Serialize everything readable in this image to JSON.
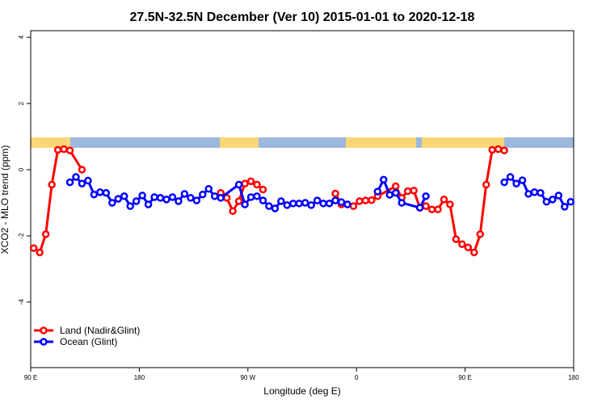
{
  "chart_data": {
    "type": "line",
    "title": "27.5N-32.5N December (Ver 10)   2015-01-01 to 2020-12-18",
    "x_label": "Longitude (deg E)",
    "y_label": "XCO2 - MLO trend (ppm)",
    "xlim": [
      90,
      540
    ],
    "ylim": [
      -5.98,
      4.2
    ],
    "xticks": [
      {
        "value": 90,
        "label": "90 E"
      },
      {
        "value": 180,
        "label": "180"
      },
      {
        "value": 270,
        "label": "90 W"
      },
      {
        "value": 360,
        "label": "0"
      },
      {
        "value": 450,
        "label": "90 E"
      },
      {
        "value": 540,
        "label": "180"
      }
    ],
    "yticks": [
      -4,
      -2,
      0,
      2,
      4
    ],
    "legend": "bottom-left",
    "series": [
      {
        "name": "Land (Nadir&Glint)",
        "color": "#ff0000",
        "x": [
          92.5,
          97.5,
          102.5,
          107.5,
          112.5,
          117.5,
          122.5,
          132.5,
          137.5,
          247.5,
          252.5,
          257.5,
          262.5,
          267.5,
          272.5,
          277.5,
          282.5,
          287.5,
          342.5,
          347.5,
          352.5,
          357.5,
          362.5,
          367.5,
          372.5,
          377.5,
          392.5,
          397.5,
          402.5,
          407.5,
          412.5,
          417.5,
          422.5,
          427.5,
          432.5,
          437.5,
          442.5,
          447.5,
          452.5,
          457.5,
          462.5,
          467.5,
          472.5,
          477.5,
          482.5
        ],
        "values": [
          -2.37,
          -2.5,
          -1.95,
          -0.45,
          0.6,
          0.62,
          0.58,
          0.0,
          null,
          -0.7,
          -0.85,
          -1.25,
          -0.95,
          -0.42,
          -0.35,
          -0.45,
          -0.6,
          null,
          -0.72,
          -1.05,
          -1.05,
          -1.1,
          -0.95,
          -0.93,
          -0.92,
          -0.8,
          -0.5,
          -0.85,
          -0.65,
          -0.63,
          -1.15,
          -1.1,
          -1.2,
          -1.2,
          -0.9,
          -1.05,
          -2.1,
          -2.25,
          -2.35,
          -2.5,
          -1.95,
          -0.45,
          0.6,
          0.62,
          0.58
        ]
      },
      {
        "name": "Ocean (Glint)",
        "color": "#0000ff",
        "x": [
          122.5,
          127.5,
          132.5,
          137.5,
          142.5,
          147.5,
          152.5,
          157.5,
          162.5,
          167.5,
          172.5,
          177.5,
          182.5,
          187.5,
          192.5,
          197.5,
          202.5,
          207.5,
          212.5,
          217.5,
          222.5,
          227.5,
          232.5,
          237.5,
          242.5,
          247.5,
          262.5,
          267.5,
          272.5,
          277.5,
          282.5,
          287.5,
          292.5,
          297.5,
          302.5,
          307.5,
          312.5,
          317.5,
          322.5,
          327.5,
          332.5,
          337.5,
          342.5,
          347.5,
          352.5,
          357.5,
          377.5,
          382.5,
          387.5,
          392.5,
          397.5,
          412.5,
          417.5,
          422.5,
          482.5,
          487.5,
          492.5,
          497.5,
          502.5,
          507.5,
          512.5,
          517.5,
          522.5,
          527.5,
          532.5,
          537.5
        ],
        "values": [
          -0.38,
          -0.22,
          -0.42,
          -0.33,
          -0.75,
          -0.68,
          -0.7,
          -1.0,
          -0.88,
          -0.8,
          -1.1,
          -0.95,
          -0.78,
          -1.05,
          -0.83,
          -0.85,
          -0.9,
          -0.83,
          -0.95,
          -0.73,
          -0.85,
          -0.93,
          -0.75,
          -0.58,
          -0.8,
          -0.85,
          -0.45,
          -1.05,
          -0.83,
          -0.8,
          -0.93,
          -1.1,
          -1.17,
          -0.95,
          -1.07,
          -1.02,
          -1.02,
          -1.0,
          -1.07,
          -0.93,
          -1.02,
          -1.02,
          -0.93,
          -0.98,
          -1.05,
          null,
          -0.66,
          -0.3,
          -0.76,
          -0.7,
          -1.0,
          -1.15,
          -0.8,
          null,
          -0.38,
          -0.22,
          -0.42,
          -0.32,
          -0.73,
          -0.68,
          -0.7,
          -0.97,
          -0.9,
          -0.78,
          -1.12,
          -0.97
        ]
      }
    ]
  }
}
